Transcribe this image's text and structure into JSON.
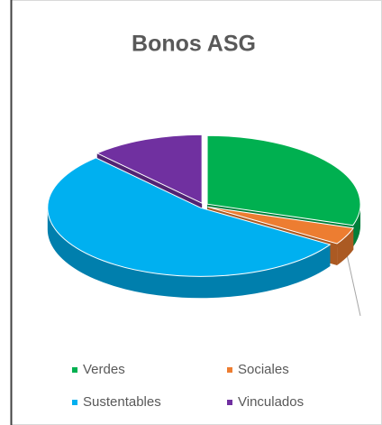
{
  "chart_data": {
    "type": "pie",
    "title": "Bonos ASG",
    "categories": [
      "Verdes",
      "Sociales",
      "Sustentables",
      "Vinculados"
    ],
    "values": [
      30,
      4,
      54,
      12
    ],
    "colors": [
      "#00b050",
      "#ed7d31",
      "#00b0f0",
      "#7030a0"
    ],
    "legend": "bottom"
  }
}
